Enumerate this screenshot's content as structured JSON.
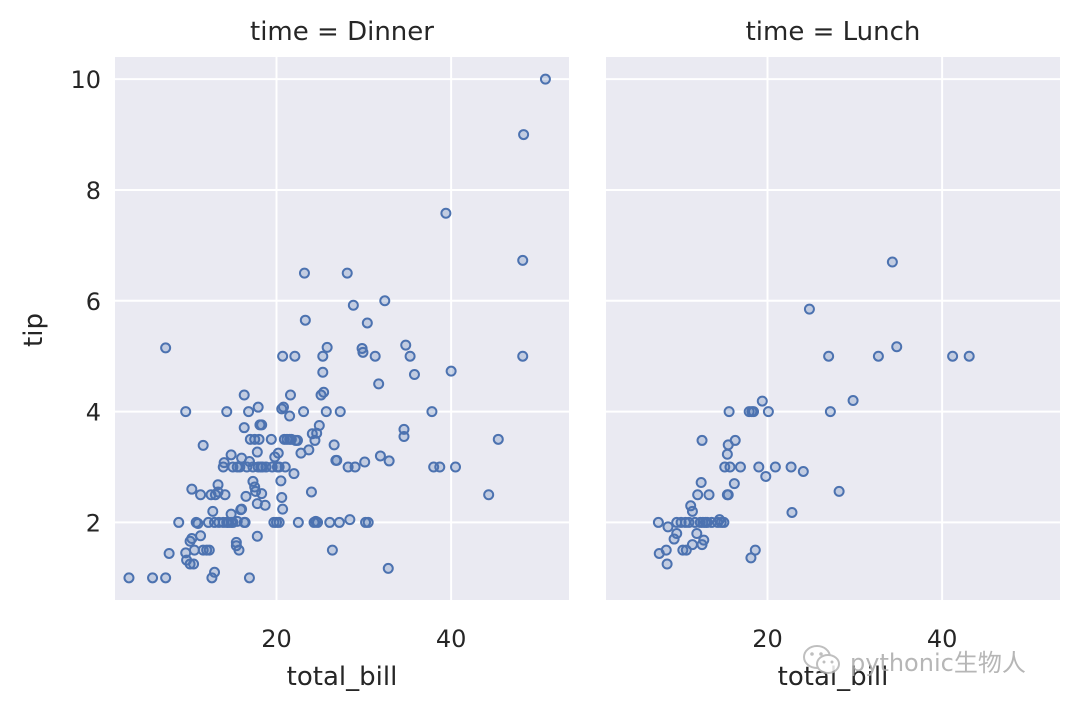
{
  "chart_data": [
    {
      "type": "scatter",
      "title": "time = Dinner",
      "xlabel": "total_bill",
      "ylabel": "tip",
      "xlim": [
        1.5,
        53.5
      ],
      "ylim": [
        0.6,
        10.4
      ],
      "xticks": [
        20,
        40
      ],
      "yticks": [
        2,
        4,
        6,
        8,
        10
      ],
      "grid": true,
      "points": [
        [
          3.1,
          1.0
        ],
        [
          5.8,
          1.0
        ],
        [
          7.3,
          1.0
        ],
        [
          7.3,
          5.15
        ],
        [
          7.7,
          1.44
        ],
        [
          8.8,
          2.0
        ],
        [
          9.6,
          4.0
        ],
        [
          9.6,
          1.45
        ],
        [
          9.7,
          1.32
        ],
        [
          10.1,
          1.66
        ],
        [
          10.1,
          1.25
        ],
        [
          10.3,
          2.6
        ],
        [
          10.3,
          1.71
        ],
        [
          10.5,
          1.25
        ],
        [
          10.6,
          1.5
        ],
        [
          10.8,
          2.0
        ],
        [
          11.0,
          1.98
        ],
        [
          11.3,
          2.5
        ],
        [
          11.3,
          1.76
        ],
        [
          11.6,
          1.5
        ],
        [
          11.6,
          3.39
        ],
        [
          12.0,
          1.5
        ],
        [
          12.2,
          2.0
        ],
        [
          12.3,
          1.5
        ],
        [
          12.5,
          2.5
        ],
        [
          12.6,
          1.0
        ],
        [
          12.7,
          2.2
        ],
        [
          12.9,
          2.0
        ],
        [
          12.9,
          1.1
        ],
        [
          13.0,
          2.5
        ],
        [
          13.3,
          2.55
        ],
        [
          13.3,
          2.68
        ],
        [
          13.4,
          2.0
        ],
        [
          13.9,
          2.0
        ],
        [
          13.9,
          3.0
        ],
        [
          14.0,
          3.08
        ],
        [
          14.1,
          2.5
        ],
        [
          14.3,
          2.0
        ],
        [
          14.3,
          4.0
        ],
        [
          14.5,
          2.0
        ],
        [
          14.8,
          3.22
        ],
        [
          14.8,
          2.0
        ],
        [
          14.8,
          2.15
        ],
        [
          15.0,
          3.0
        ],
        [
          15.0,
          2.0
        ],
        [
          15.4,
          1.64
        ],
        [
          15.4,
          1.58
        ],
        [
          15.5,
          3.0
        ],
        [
          15.5,
          2.02
        ],
        [
          15.7,
          1.5
        ],
        [
          15.8,
          3.0
        ],
        [
          15.9,
          2.23
        ],
        [
          16.0,
          3.16
        ],
        [
          16.0,
          2.24
        ],
        [
          16.3,
          3.71
        ],
        [
          16.3,
          4.3
        ],
        [
          16.3,
          2.0
        ],
        [
          16.4,
          2.0
        ],
        [
          16.5,
          2.47
        ],
        [
          16.6,
          3.0
        ],
        [
          16.8,
          4.0
        ],
        [
          16.9,
          1.0
        ],
        [
          16.9,
          3.1
        ],
        [
          17.0,
          3.5
        ],
        [
          17.3,
          2.74
        ],
        [
          17.3,
          3.0
        ],
        [
          17.5,
          2.64
        ],
        [
          17.5,
          3.5
        ],
        [
          17.6,
          2.56
        ],
        [
          17.8,
          3.27
        ],
        [
          17.8,
          1.75
        ],
        [
          17.8,
          2.34
        ],
        [
          17.9,
          3.0
        ],
        [
          17.9,
          4.08
        ],
        [
          18.0,
          3.5
        ],
        [
          18.1,
          3.76
        ],
        [
          18.2,
          3.0
        ],
        [
          18.3,
          2.52
        ],
        [
          18.3,
          3.76
        ],
        [
          18.4,
          3.0
        ],
        [
          18.7,
          2.31
        ],
        [
          18.8,
          3.0
        ],
        [
          19.4,
          3.5
        ],
        [
          19.5,
          3.0
        ],
        [
          19.7,
          2.0
        ],
        [
          19.8,
          3.18
        ],
        [
          20.0,
          2.0
        ],
        [
          20.1,
          3.0
        ],
        [
          20.2,
          3.25
        ],
        [
          20.3,
          2.0
        ],
        [
          20.3,
          3.0
        ],
        [
          20.5,
          2.75
        ],
        [
          20.6,
          2.45
        ],
        [
          20.6,
          4.05
        ],
        [
          20.7,
          5.0
        ],
        [
          20.7,
          2.24
        ],
        [
          20.8,
          4.08
        ],
        [
          20.9,
          3.5
        ],
        [
          21.0,
          3.0
        ],
        [
          21.2,
          3.5
        ],
        [
          21.5,
          3.5
        ],
        [
          21.5,
          3.92
        ],
        [
          21.6,
          4.3
        ],
        [
          21.7,
          3.5
        ],
        [
          22.0,
          2.88
        ],
        [
          22.1,
          5.0
        ],
        [
          22.2,
          3.48
        ],
        [
          22.4,
          3.48
        ],
        [
          22.5,
          2.0
        ],
        [
          22.8,
          3.25
        ],
        [
          23.1,
          4.0
        ],
        [
          23.2,
          6.5
        ],
        [
          23.3,
          5.65
        ],
        [
          23.7,
          3.31
        ],
        [
          24.0,
          2.55
        ],
        [
          24.1,
          3.6
        ],
        [
          24.3,
          2.0
        ],
        [
          24.4,
          3.48
        ],
        [
          24.5,
          2.02
        ],
        [
          24.6,
          3.61
        ],
        [
          24.7,
          2.0
        ],
        [
          24.9,
          3.75
        ],
        [
          25.1,
          4.3
        ],
        [
          25.3,
          4.71
        ],
        [
          25.3,
          5.0
        ],
        [
          25.4,
          4.35
        ],
        [
          25.7,
          4.0
        ],
        [
          25.8,
          5.16
        ],
        [
          26.1,
          2.0
        ],
        [
          26.4,
          1.5
        ],
        [
          26.6,
          3.4
        ],
        [
          26.8,
          3.12
        ],
        [
          26.9,
          3.12
        ],
        [
          27.2,
          2.0
        ],
        [
          27.3,
          4.0
        ],
        [
          28.1,
          6.5
        ],
        [
          28.2,
          3.0
        ],
        [
          28.4,
          2.05
        ],
        [
          28.8,
          5.92
        ],
        [
          29.0,
          3.0
        ],
        [
          29.8,
          5.14
        ],
        [
          29.9,
          5.07
        ],
        [
          30.1,
          3.09
        ],
        [
          30.2,
          2.0
        ],
        [
          30.4,
          5.6
        ],
        [
          30.5,
          2.0
        ],
        [
          31.3,
          5.0
        ],
        [
          31.7,
          4.5
        ],
        [
          31.9,
          3.2
        ],
        [
          32.4,
          6.0
        ],
        [
          32.8,
          1.17
        ],
        [
          32.9,
          3.11
        ],
        [
          34.6,
          3.55
        ],
        [
          34.6,
          3.68
        ],
        [
          34.8,
          5.2
        ],
        [
          35.3,
          5.0
        ],
        [
          35.8,
          4.67
        ],
        [
          37.8,
          4.0
        ],
        [
          38.0,
          3.0
        ],
        [
          38.7,
          3.0
        ],
        [
          39.4,
          7.58
        ],
        [
          40.0,
          4.73
        ],
        [
          40.5,
          3.0
        ],
        [
          44.3,
          2.5
        ],
        [
          45.4,
          3.5
        ],
        [
          48.2,
          5.0
        ],
        [
          48.2,
          6.73
        ],
        [
          48.3,
          9.0
        ],
        [
          50.8,
          10.0
        ]
      ]
    },
    {
      "type": "scatter",
      "title": "time = Lunch",
      "xlabel": "total_bill",
      "ylabel": "",
      "xlim": [
        1.5,
        53.5
      ],
      "ylim": [
        0.6,
        10.4
      ],
      "xticks": [
        20,
        40
      ],
      "yticks": [
        2,
        4,
        6,
        8,
        10
      ],
      "grid": true,
      "points": [
        [
          7.5,
          2.0
        ],
        [
          7.6,
          1.44
        ],
        [
          8.4,
          1.5
        ],
        [
          8.5,
          1.25
        ],
        [
          8.6,
          1.92
        ],
        [
          9.3,
          1.7
        ],
        [
          9.6,
          1.8
        ],
        [
          9.6,
          2.0
        ],
        [
          10.1,
          2.0
        ],
        [
          10.3,
          1.5
        ],
        [
          10.6,
          2.0
        ],
        [
          10.7,
          1.5
        ],
        [
          11.0,
          2.0
        ],
        [
          11.2,
          2.3
        ],
        [
          11.4,
          1.6
        ],
        [
          11.4,
          2.2
        ],
        [
          11.7,
          2.0
        ],
        [
          11.9,
          1.8
        ],
        [
          12.0,
          2.5
        ],
        [
          12.3,
          2.0
        ],
        [
          12.4,
          2.72
        ],
        [
          12.5,
          3.48
        ],
        [
          12.5,
          1.6
        ],
        [
          12.6,
          2.0
        ],
        [
          12.7,
          1.68
        ],
        [
          12.9,
          2.0
        ],
        [
          13.1,
          2.0
        ],
        [
          13.3,
          2.5
        ],
        [
          13.6,
          2.0
        ],
        [
          14.3,
          2.0
        ],
        [
          14.5,
          2.05
        ],
        [
          14.7,
          2.0
        ],
        [
          15.0,
          2.0
        ],
        [
          15.1,
          3.0
        ],
        [
          15.4,
          2.5
        ],
        [
          15.4,
          3.23
        ],
        [
          15.5,
          3.4
        ],
        [
          15.5,
          2.5
        ],
        [
          15.6,
          4.0
        ],
        [
          15.7,
          3.0
        ],
        [
          16.2,
          2.7
        ],
        [
          16.3,
          3.48
        ],
        [
          16.9,
          3.0
        ],
        [
          17.9,
          4.0
        ],
        [
          18.2,
          4.0
        ],
        [
          18.1,
          1.36
        ],
        [
          18.4,
          4.0
        ],
        [
          18.6,
          1.5
        ],
        [
          19.0,
          3.0
        ],
        [
          19.4,
          4.19
        ],
        [
          19.8,
          2.83
        ],
        [
          20.1,
          4.0
        ],
        [
          20.9,
          3.0
        ],
        [
          22.7,
          3.0
        ],
        [
          22.8,
          2.18
        ],
        [
          24.1,
          2.92
        ],
        [
          24.8,
          5.85
        ],
        [
          27.0,
          5.0
        ],
        [
          27.2,
          4.0
        ],
        [
          28.2,
          2.56
        ],
        [
          29.8,
          4.2
        ],
        [
          32.7,
          5.0
        ],
        [
          34.3,
          6.7
        ],
        [
          34.8,
          5.17
        ],
        [
          41.2,
          5.0
        ],
        [
          43.1,
          5.0
        ]
      ]
    }
  ],
  "watermark": {
    "text": "pythonic生物人"
  }
}
